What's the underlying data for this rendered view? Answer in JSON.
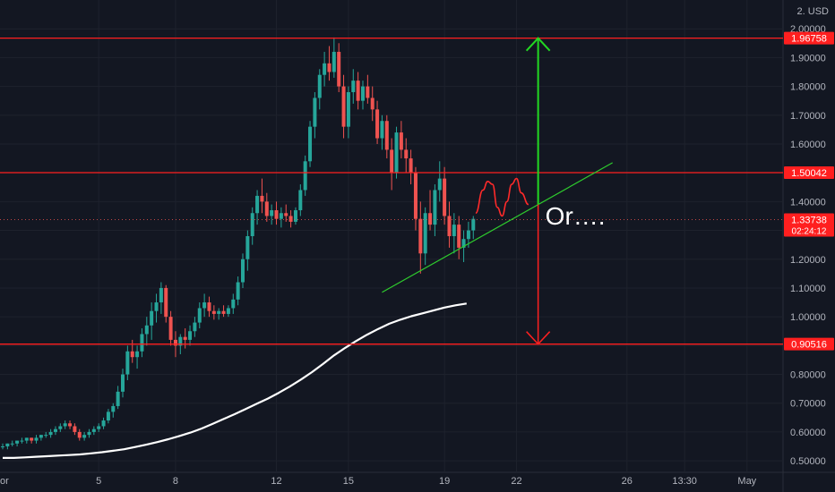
{
  "header": {
    "currency": "2. USD"
  },
  "annotation": {
    "text": "Or…."
  },
  "colors": {
    "background": "#131722",
    "up_candle": "#26a69a",
    "down_candle": "#ef5350",
    "level_line": "#ff1f1f",
    "trendline": "#2ecc2e",
    "up_arrow": "#22d822",
    "down_arrow": "#ff2020",
    "moving_average": "#ffffff",
    "axis_text": "#b2b5be"
  },
  "chart_data": {
    "type": "candlestick",
    "y_axis": {
      "side": "right",
      "ylim": [
        0.46,
        2.1
      ],
      "ticks": [
        "2.00000",
        "1.90000",
        "1.80000",
        "1.70000",
        "1.60000",
        "1.50000",
        "1.40000",
        "1.30000",
        "1.20000",
        "1.10000",
        "1.00000",
        "0.90000",
        "0.80000",
        "0.70000",
        "0.60000",
        "0.50000"
      ]
    },
    "x_axis": {
      "ticks": [
        "or",
        "5",
        "8",
        "12",
        "15",
        "19",
        "22",
        "26",
        "13:30",
        "May"
      ]
    },
    "price_labels": [
      {
        "name": "resistance-high",
        "text": "1.96758",
        "value": 1.96758
      },
      {
        "name": "resistance-mid",
        "text": "1.50042",
        "value": 1.50042
      },
      {
        "name": "support-low",
        "text": "0.90516",
        "value": 0.90516
      },
      {
        "name": "current-price",
        "text": "1.33738",
        "value": 1.33738,
        "countdown": "02:24:12"
      }
    ],
    "horizontal_levels": [
      1.96758,
      1.50042,
      0.90516
    ],
    "current_price": 1.33738,
    "candles": [
      [
        0.55,
        0.56,
        0.54,
        0.55
      ],
      [
        0.55,
        0.56,
        0.54,
        0.56
      ],
      [
        0.56,
        0.57,
        0.55,
        0.56
      ],
      [
        0.56,
        0.57,
        0.55,
        0.57
      ],
      [
        0.57,
        0.58,
        0.56,
        0.57
      ],
      [
        0.57,
        0.58,
        0.56,
        0.58
      ],
      [
        0.58,
        0.58,
        0.56,
        0.57
      ],
      [
        0.57,
        0.59,
        0.56,
        0.58
      ],
      [
        0.58,
        0.59,
        0.57,
        0.59
      ],
      [
        0.59,
        0.6,
        0.58,
        0.59
      ],
      [
        0.59,
        0.61,
        0.58,
        0.6
      ],
      [
        0.6,
        0.62,
        0.59,
        0.61
      ],
      [
        0.61,
        0.63,
        0.6,
        0.62
      ],
      [
        0.62,
        0.64,
        0.61,
        0.63
      ],
      [
        0.63,
        0.64,
        0.61,
        0.62
      ],
      [
        0.62,
        0.63,
        0.59,
        0.6
      ],
      [
        0.6,
        0.61,
        0.57,
        0.58
      ],
      [
        0.58,
        0.6,
        0.57,
        0.59
      ],
      [
        0.59,
        0.61,
        0.58,
        0.6
      ],
      [
        0.6,
        0.62,
        0.59,
        0.61
      ],
      [
        0.61,
        0.63,
        0.6,
        0.62
      ],
      [
        0.62,
        0.65,
        0.61,
        0.64
      ],
      [
        0.64,
        0.68,
        0.63,
        0.67
      ],
      [
        0.67,
        0.7,
        0.65,
        0.69
      ],
      [
        0.69,
        0.76,
        0.68,
        0.74
      ],
      [
        0.74,
        0.82,
        0.72,
        0.8
      ],
      [
        0.8,
        0.9,
        0.78,
        0.88
      ],
      [
        0.88,
        0.92,
        0.84,
        0.86
      ],
      [
        0.86,
        0.9,
        0.82,
        0.88
      ],
      [
        0.88,
        0.96,
        0.86,
        0.94
      ],
      [
        0.94,
        1.0,
        0.9,
        0.97
      ],
      [
        0.97,
        1.05,
        0.92,
        1.02
      ],
      [
        1.02,
        1.08,
        0.98,
        1.05
      ],
      [
        1.05,
        1.12,
        1.01,
        1.1
      ],
      [
        1.1,
        1.11,
        0.98,
        1.0
      ],
      [
        1.0,
        1.02,
        0.9,
        0.92
      ],
      [
        0.92,
        0.95,
        0.86,
        0.9
      ],
      [
        0.9,
        0.94,
        0.87,
        0.93
      ],
      [
        0.93,
        0.96,
        0.89,
        0.92
      ],
      [
        0.92,
        0.97,
        0.9,
        0.95
      ],
      [
        0.95,
        1.0,
        0.93,
        0.98
      ],
      [
        0.98,
        1.05,
        0.96,
        1.03
      ],
      [
        1.03,
        1.08,
        1.0,
        1.05
      ],
      [
        1.05,
        1.07,
        1.0,
        1.02
      ],
      [
        1.02,
        1.04,
        0.99,
        1.01
      ],
      [
        1.01,
        1.03,
        0.99,
        1.02
      ],
      [
        1.02,
        1.04,
        1.0,
        1.01
      ],
      [
        1.01,
        1.04,
        1.0,
        1.03
      ],
      [
        1.03,
        1.08,
        1.01,
        1.06
      ],
      [
        1.06,
        1.14,
        1.04,
        1.12
      ],
      [
        1.12,
        1.22,
        1.1,
        1.2
      ],
      [
        1.2,
        1.3,
        1.16,
        1.28
      ],
      [
        1.28,
        1.38,
        1.25,
        1.36
      ],
      [
        1.36,
        1.44,
        1.32,
        1.42
      ],
      [
        1.42,
        1.48,
        1.36,
        1.4
      ],
      [
        1.4,
        1.43,
        1.33,
        1.35
      ],
      [
        1.35,
        1.39,
        1.32,
        1.37
      ],
      [
        1.37,
        1.4,
        1.32,
        1.34
      ],
      [
        1.34,
        1.38,
        1.31,
        1.36
      ],
      [
        1.36,
        1.39,
        1.33,
        1.35
      ],
      [
        1.35,
        1.37,
        1.31,
        1.33
      ],
      [
        1.33,
        1.38,
        1.32,
        1.37
      ],
      [
        1.37,
        1.46,
        1.35,
        1.44
      ],
      [
        1.44,
        1.56,
        1.42,
        1.54
      ],
      [
        1.54,
        1.68,
        1.52,
        1.66
      ],
      [
        1.66,
        1.78,
        1.62,
        1.76
      ],
      [
        1.76,
        1.86,
        1.72,
        1.84
      ],
      [
        1.84,
        1.92,
        1.8,
        1.88
      ],
      [
        1.88,
        1.94,
        1.82,
        1.85
      ],
      [
        1.85,
        1.97,
        1.83,
        1.92
      ],
      [
        1.92,
        1.95,
        1.78,
        1.8
      ],
      [
        1.8,
        1.84,
        1.62,
        1.66
      ],
      [
        1.66,
        1.8,
        1.62,
        1.78
      ],
      [
        1.78,
        1.86,
        1.74,
        1.82
      ],
      [
        1.82,
        1.85,
        1.72,
        1.75
      ],
      [
        1.75,
        1.82,
        1.72,
        1.8
      ],
      [
        1.8,
        1.84,
        1.74,
        1.76
      ],
      [
        1.76,
        1.8,
        1.68,
        1.72
      ],
      [
        1.72,
        1.75,
        1.6,
        1.62
      ],
      [
        1.62,
        1.7,
        1.58,
        1.68
      ],
      [
        1.68,
        1.7,
        1.55,
        1.58
      ],
      [
        1.58,
        1.62,
        1.44,
        1.5
      ],
      [
        1.5,
        1.66,
        1.48,
        1.64
      ],
      [
        1.64,
        1.68,
        1.55,
        1.58
      ],
      [
        1.58,
        1.62,
        1.5,
        1.55
      ],
      [
        1.55,
        1.58,
        1.46,
        1.5
      ],
      [
        1.5,
        1.52,
        1.3,
        1.34
      ],
      [
        1.34,
        1.4,
        1.15,
        1.22
      ],
      [
        1.22,
        1.38,
        1.18,
        1.36
      ],
      [
        1.36,
        1.44,
        1.3,
        1.32
      ],
      [
        1.32,
        1.46,
        1.28,
        1.44
      ],
      [
        1.44,
        1.54,
        1.4,
        1.48
      ],
      [
        1.48,
        1.52,
        1.32,
        1.35
      ],
      [
        1.35,
        1.4,
        1.24,
        1.28
      ],
      [
        1.28,
        1.36,
        1.22,
        1.32
      ],
      [
        1.32,
        1.35,
        1.2,
        1.24
      ],
      [
        1.24,
        1.3,
        1.19,
        1.27
      ],
      [
        1.27,
        1.33,
        1.24,
        1.3
      ],
      [
        1.3,
        1.35,
        1.27,
        1.34
      ]
    ],
    "series": [
      {
        "type": "ma",
        "values": [
          0.51,
          0.51,
          0.512,
          0.514,
          0.516,
          0.518,
          0.52,
          0.522,
          0.526,
          0.53,
          0.535,
          0.54,
          0.548,
          0.556,
          0.565,
          0.575,
          0.586,
          0.598,
          0.612,
          0.628,
          0.645,
          0.662,
          0.68,
          0.698,
          0.716,
          0.736,
          0.758,
          0.782,
          0.808,
          0.836,
          0.866,
          0.892,
          0.916,
          0.938,
          0.958,
          0.976,
          0.99,
          1.002,
          1.012,
          1.022,
          1.032,
          1.04,
          1.046
        ]
      }
    ],
    "ma_start_index": 0,
    "ma_step": 2.3,
    "trendline": {
      "from": [
        79,
        1.085
      ],
      "to": [
        127,
        1.535
      ]
    },
    "projection_wave": [
      [
        98.5,
        1.36
      ],
      [
        100,
        1.44
      ],
      [
        101,
        1.47
      ],
      [
        102,
        1.46
      ],
      [
        103,
        1.38
      ],
      [
        104,
        1.35
      ],
      [
        105,
        1.4
      ],
      [
        106,
        1.46
      ],
      [
        107,
        1.48
      ],
      [
        108,
        1.43
      ],
      [
        109.5,
        1.39
      ]
    ],
    "projection_arrow": {
      "x_index": 111.5,
      "top": 1.96758,
      "mid": 1.39,
      "bottom": 0.90516
    },
    "annotation_position": {
      "x_index": 113,
      "y_value": 1.32
    }
  }
}
